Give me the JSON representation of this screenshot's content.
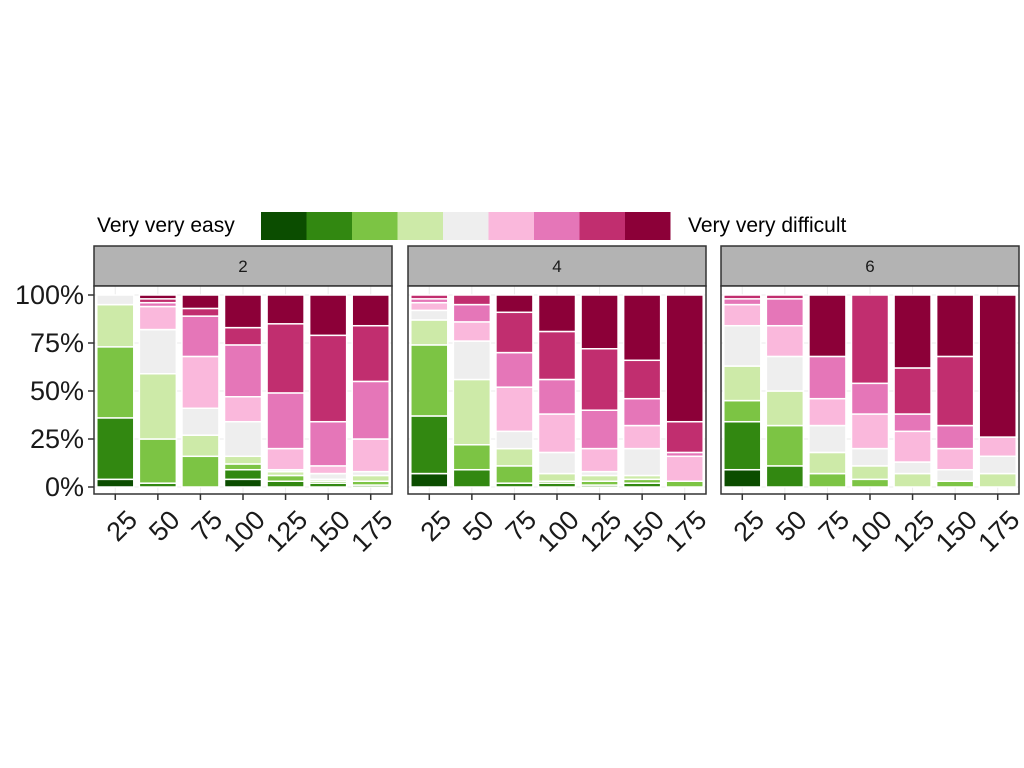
{
  "chart_data": {
    "type": "bar",
    "stacked": true,
    "normalized": true,
    "legend": {
      "position": "top",
      "low_label": "Very very easy",
      "high_label": "Very very difficult",
      "levels": 9,
      "colors": [
        "#0b4d00",
        "#328811",
        "#7cc444",
        "#cdeaa8",
        "#eeeeee",
        "#fab8dc",
        "#e576b8",
        "#c12e6f",
        "#8c0038"
      ]
    },
    "y_ticks": [
      "0%",
      "25%",
      "50%",
      "75%",
      "100%"
    ],
    "ylim": [
      0,
      100
    ],
    "categories": [
      "25",
      "50",
      "75",
      "100",
      "125",
      "150",
      "175"
    ],
    "panels": [
      {
        "label": "2",
        "bars": [
          [
            4,
            32,
            37,
            22,
            5,
            0,
            0,
            0,
            0
          ],
          [
            0,
            2,
            23,
            34,
            23,
            12,
            2,
            2,
            2
          ],
          [
            0,
            0,
            16,
            11,
            14,
            27,
            21,
            4,
            7
          ],
          [
            4,
            5,
            3,
            4,
            18,
            13,
            27,
            9,
            17
          ],
          [
            0,
            3,
            3,
            2,
            1,
            11,
            29,
            36,
            15
          ],
          [
            0,
            2,
            1,
            1,
            3,
            4,
            23,
            45,
            21
          ],
          [
            0,
            1,
            2,
            3,
            2,
            17,
            30,
            29,
            16
          ]
        ]
      },
      {
        "label": "4",
        "bars": [
          [
            7,
            30,
            37,
            13,
            5,
            4,
            2,
            2,
            0
          ],
          [
            0,
            9,
            13,
            34,
            20,
            10,
            9,
            5,
            0
          ],
          [
            0,
            2,
            9,
            9,
            9,
            23,
            18,
            21,
            9
          ],
          [
            0,
            2,
            1,
            4,
            11,
            20,
            18,
            25,
            19
          ],
          [
            0,
            1,
            2,
            3,
            2,
            12,
            20,
            32,
            28
          ],
          [
            0,
            2,
            2,
            2,
            14,
            12,
            14,
            20,
            34
          ],
          [
            0,
            0,
            3,
            0,
            0,
            13,
            2,
            16,
            66
          ]
        ]
      },
      {
        "label": "6",
        "bars": [
          [
            9,
            25,
            11,
            18,
            21,
            11,
            3,
            2,
            0
          ],
          [
            0,
            11,
            21,
            18,
            18,
            16,
            14,
            2,
            0
          ],
          [
            0,
            0,
            7,
            11,
            14,
            14,
            22,
            0,
            32
          ],
          [
            0,
            0,
            4,
            7,
            9,
            18,
            16,
            46,
            0
          ],
          [
            0,
            0,
            0,
            7,
            6,
            16,
            9,
            24,
            38
          ],
          [
            0,
            0,
            3,
            0,
            6,
            11,
            12,
            36,
            32
          ],
          [
            0,
            0,
            0,
            7,
            9,
            10,
            0,
            0,
            74
          ]
        ]
      }
    ]
  }
}
